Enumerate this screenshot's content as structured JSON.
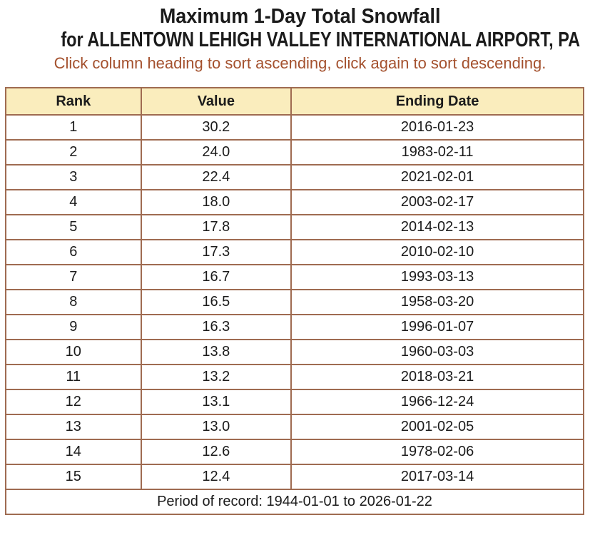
{
  "title_line1": "Maximum 1-Day Total Snowfall",
  "title_line2": "for ALLENTOWN LEHIGH VALLEY INTERNATIONAL AIRPORT, PA",
  "subtitle": "Click column heading to sort ascending, click again to sort descending.",
  "table": {
    "headers": [
      "Rank",
      "Value",
      "Ending Date"
    ],
    "header_names": [
      "rank",
      "value",
      "ending-date"
    ],
    "rows": [
      [
        "1",
        "30.2",
        "2016-01-23"
      ],
      [
        "2",
        "24.0",
        "1983-02-11"
      ],
      [
        "3",
        "22.4",
        "2021-02-01"
      ],
      [
        "4",
        "18.0",
        "2003-02-17"
      ],
      [
        "5",
        "17.8",
        "2014-02-13"
      ],
      [
        "6",
        "17.3",
        "2010-02-10"
      ],
      [
        "7",
        "16.7",
        "1993-03-13"
      ],
      [
        "8",
        "16.5",
        "1958-03-20"
      ],
      [
        "9",
        "16.3",
        "1996-01-07"
      ],
      [
        "10",
        "13.8",
        "1960-03-03"
      ],
      [
        "11",
        "13.2",
        "2018-03-21"
      ],
      [
        "12",
        "13.1",
        "1966-12-24"
      ],
      [
        "13",
        "13.0",
        "2001-02-05"
      ],
      [
        "14",
        "12.6",
        "1978-02-06"
      ],
      [
        "15",
        "12.4",
        "2017-03-14"
      ]
    ],
    "footer": "Period of record: 1944-01-01 to 2026-01-22"
  },
  "colors": {
    "header_bg": "#faedbd",
    "border": "#9f6b51",
    "subtitle_text": "#a4512e",
    "text": "#1b1b1b",
    "page_bg": "#ffffff"
  }
}
